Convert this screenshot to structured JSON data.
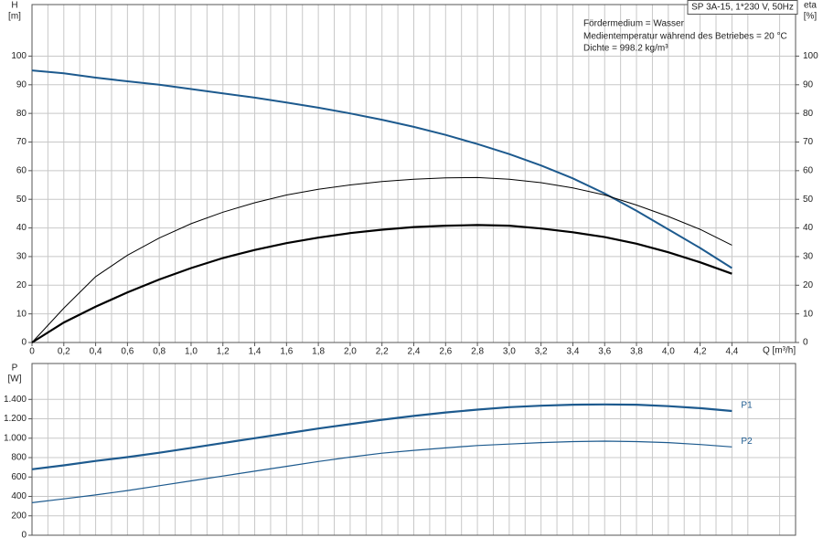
{
  "chart_data": [
    {
      "type": "line",
      "title": "SP 3A-15, 1*230 V, 50Hz",
      "annotations": [
        "Fördermedium = Wasser",
        "Medientemperatur während des Betriebes = 20 °C",
        "Dichte = 998.2 kg/m³"
      ],
      "ylabel": "H",
      "yunit": "[m]",
      "y2label": "eta",
      "y2unit": "[%]",
      "xlabel": "Q [m³/h]",
      "x": [
        0,
        0.2,
        0.4,
        0.6,
        0.8,
        1.0,
        1.2,
        1.4,
        1.6,
        1.8,
        2.0,
        2.2,
        2.4,
        2.6,
        2.8,
        3.0,
        3.2,
        3.4,
        3.6,
        3.8,
        4.0,
        4.2,
        4.4
      ],
      "xlim": [
        0,
        4.8
      ],
      "xticks": [
        0,
        {
          "value": 0.2,
          "label": "0,2"
        },
        {
          "value": 0.4,
          "label": "0,4"
        },
        {
          "value": 0.6,
          "label": "0,6"
        },
        {
          "value": 0.8,
          "label": "0,8"
        },
        {
          "value": 1.0,
          "label": "1,0"
        },
        {
          "value": 1.2,
          "label": "1,2"
        },
        {
          "value": 1.4,
          "label": "1,4"
        },
        {
          "value": 1.6,
          "label": "1,6"
        },
        {
          "value": 1.8,
          "label": "1,8"
        },
        {
          "value": 2.0,
          "label": "2,0"
        },
        {
          "value": 2.2,
          "label": "2,2"
        },
        {
          "value": 2.4,
          "label": "2,4"
        },
        {
          "value": 2.6,
          "label": "2,6"
        },
        {
          "value": 2.8,
          "label": "2,8"
        },
        {
          "value": 3.0,
          "label": "3,0"
        },
        {
          "value": 3.2,
          "label": "3,2"
        },
        {
          "value": 3.4,
          "label": "3,4"
        },
        {
          "value": 3.6,
          "label": "3,6"
        },
        {
          "value": 3.8,
          "label": "3,8"
        },
        {
          "value": 4.0,
          "label": "4,0"
        },
        {
          "value": 4.2,
          "label": "4,2"
        },
        {
          "value": 4.4,
          "label": "4,4"
        }
      ],
      "ylim": [
        0,
        118
      ],
      "yticks": [
        0,
        10,
        20,
        30,
        40,
        50,
        60,
        70,
        80,
        90,
        100
      ],
      "y2lim": [
        0,
        118
      ],
      "y2ticks": [
        0,
        10,
        20,
        30,
        40,
        50,
        60,
        70,
        80,
        90,
        100
      ],
      "grid": true,
      "series": [
        {
          "color": "#1d5a8e",
          "values": [
            95,
            94,
            92.5,
            91.2,
            90,
            88.5,
            87,
            85.5,
            83.8,
            82,
            80,
            77.8,
            75.3,
            72.5,
            69.3,
            65.8,
            61.8,
            57.3,
            52,
            46,
            39.5,
            33,
            26
          ]
        },
        {
          "color": "#000000",
          "axis": "y2",
          "values": [
            0,
            12,
            23,
            30.5,
            36.5,
            41.5,
            45.5,
            48.8,
            51.5,
            53.5,
            55,
            56.2,
            57,
            57.5,
            57.6,
            57,
            55.8,
            54,
            51.5,
            48,
            44,
            39.5,
            34
          ]
        },
        {
          "color": "#000000",
          "axis": "y2",
          "values": [
            0,
            7,
            12.5,
            17.5,
            22,
            26,
            29.5,
            32.3,
            34.7,
            36.6,
            38.2,
            39.4,
            40.3,
            40.8,
            41,
            40.8,
            39.8,
            38.5,
            36.8,
            34.5,
            31.5,
            28,
            24
          ]
        }
      ]
    },
    {
      "type": "line",
      "ylabel": "P",
      "yunit": "[W]",
      "x": [
        0,
        0.2,
        0.4,
        0.6,
        0.8,
        1.0,
        1.2,
        1.4,
        1.6,
        1.8,
        2.0,
        2.2,
        2.4,
        2.6,
        2.8,
        3.0,
        3.2,
        3.4,
        3.6,
        3.8,
        4.0,
        4.2,
        4.4
      ],
      "xlim": [
        0,
        4.8
      ],
      "ylim": [
        0,
        1770
      ],
      "yticks": [
        0,
        200,
        400,
        600,
        800,
        {
          "value": 1000,
          "label": "1.000"
        },
        {
          "value": 1200,
          "label": "1.200"
        },
        {
          "value": 1400,
          "label": "1.400"
        }
      ],
      "grid": true,
      "series": [
        {
          "name": "P1",
          "color": "#1d5a8e",
          "values": [
            680,
            720,
            765,
            805,
            850,
            900,
            950,
            1000,
            1050,
            1100,
            1145,
            1190,
            1230,
            1265,
            1295,
            1320,
            1335,
            1345,
            1348,
            1345,
            1330,
            1310,
            1280
          ]
        },
        {
          "name": "P2",
          "color": "#1d5a8e",
          "values": [
            335,
            375,
            415,
            460,
            510,
            560,
            610,
            660,
            710,
            760,
            805,
            845,
            875,
            900,
            925,
            940,
            955,
            965,
            970,
            965,
            955,
            935,
            910
          ]
        }
      ]
    }
  ]
}
